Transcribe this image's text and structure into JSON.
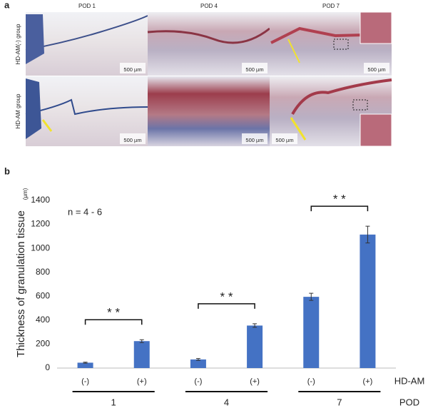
{
  "panel_a": {
    "label": "a",
    "columns": [
      "POD 1",
      "POD 4",
      "POD 7"
    ],
    "rows": [
      "HD-AM(-) group",
      "HD-AM group"
    ],
    "scale_bar": "500 µm"
  },
  "chart_data": {
    "type": "bar",
    "panel_label": "b",
    "ylabel": "Thickness of granulation tissue",
    "yunit": "(μm)",
    "annotation": "n = 4 - 6",
    "categories": [
      "(-)",
      "(+)",
      "(-)",
      "(+)",
      "(-)",
      "(+)"
    ],
    "category_axis_label": "HD-AM",
    "groups": [
      "1",
      "4",
      "7"
    ],
    "group_axis_label": "POD",
    "values": [
      45,
      225,
      72,
      355,
      595,
      1115
    ],
    "errors": [
      4,
      12,
      8,
      15,
      30,
      70
    ],
    "significance": [
      "* *",
      "* *",
      "* *"
    ],
    "color": "#4472c4",
    "ylim": [
      0,
      1400
    ],
    "yticks": [
      0,
      200,
      400,
      600,
      800,
      1000,
      1200,
      1400
    ],
    "grid": false
  }
}
